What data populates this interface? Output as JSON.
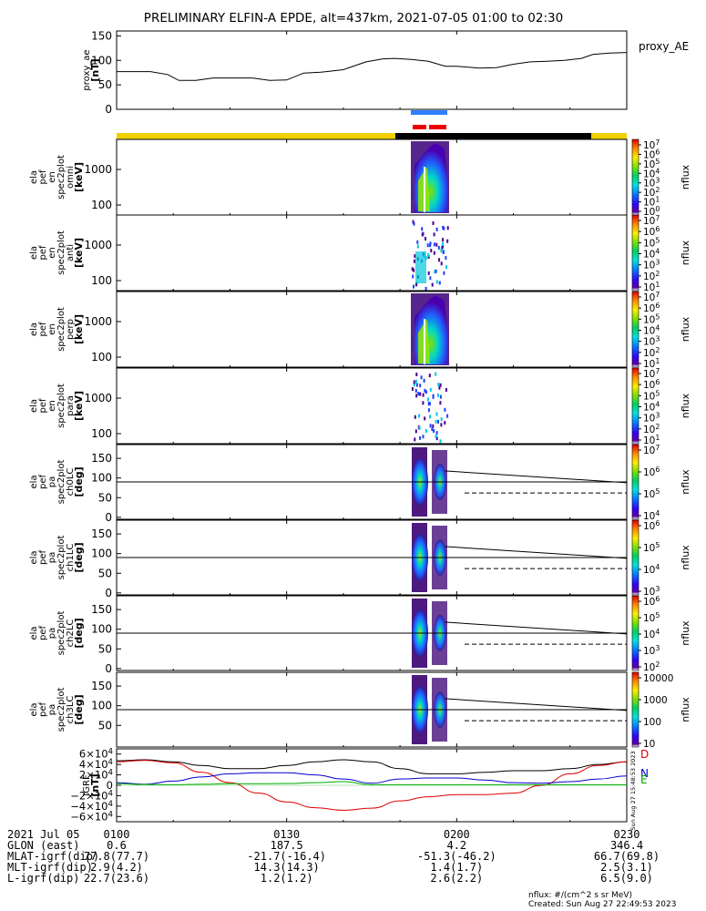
{
  "title": "PRELIMINARY ELFIN-A EPDE, alt=437km, 2021-07-05 01:00 to 02:30",
  "proxy_panel": {
    "ylabel": "proxy_ae",
    "unit": "[nT]",
    "legend": "proxy_AE",
    "yticks": [
      "150",
      "100",
      "50",
      "0"
    ],
    "chart_data": {
      "type": "line",
      "x_minutes": [
        0,
        3,
        6,
        9,
        11,
        14,
        17,
        20,
        24,
        27,
        30,
        33,
        36,
        37,
        40,
        44,
        47,
        49,
        52,
        55,
        58,
        60,
        64,
        67,
        70,
        73,
        76,
        79,
        82,
        84,
        87,
        90
      ],
      "values": [
        77,
        77,
        77,
        71,
        59,
        59,
        64,
        64,
        64,
        59,
        60,
        74,
        76,
        77,
        81,
        97,
        103,
        104,
        102,
        98,
        88,
        88,
        84,
        85,
        92,
        97,
        98,
        100,
        104,
        112,
        115,
        116
      ],
      "ylim": [
        0,
        160
      ]
    }
  },
  "phase_bars": {
    "blue": "#2f7fff",
    "red": "#ee0000",
    "yellow": "#f0d000",
    "black": "#000000"
  },
  "spec_panels": [
    {
      "labels": [
        "ela",
        "pef",
        "en",
        "spec2plot",
        "omni",
        "[keV]"
      ],
      "yticks": [
        "1000",
        "100"
      ],
      "cbar_ticks": [
        "10^7",
        "10^6",
        "10^5",
        "10^4",
        "10^3",
        "10^2",
        "10^1",
        "10^0"
      ],
      "cbar_label": "nflux"
    },
    {
      "labels": [
        "ela",
        "pef",
        "en",
        "spec2plot",
        "anti",
        "[keV]"
      ],
      "yticks": [
        "1000",
        "100"
      ],
      "cbar_ticks": [
        "10^7",
        "10^6",
        "10^5",
        "10^4",
        "10^3",
        "10^2",
        "10^1"
      ],
      "cbar_label": "nflux"
    },
    {
      "labels": [
        "ela",
        "pef",
        "en",
        "spec2plot",
        "perp",
        "[keV]"
      ],
      "yticks": [
        "1000",
        "100"
      ],
      "cbar_ticks": [
        "10^7",
        "10^6",
        "10^5",
        "10^4",
        "10^3",
        "10^2",
        "10^1"
      ],
      "cbar_label": "nflux"
    },
    {
      "labels": [
        "ela",
        "pef",
        "en",
        "spec2plot",
        "para",
        "[keV]"
      ],
      "yticks": [
        "1000",
        "100"
      ],
      "cbar_ticks": [
        "10^7",
        "10^6",
        "10^5",
        "10^4",
        "10^3",
        "10^2",
        "10^1"
      ],
      "cbar_label": "nflux"
    }
  ],
  "pa_panels": [
    {
      "labels": [
        "ela",
        "pef",
        "pa",
        "spec2plot",
        "ch0LC",
        "[deg]"
      ],
      "yticks": [
        "150",
        "100",
        "50",
        "0"
      ],
      "cbar_ticks": [
        "10^7",
        "10^6",
        "10^5",
        "10^4"
      ],
      "cbar_label": "nflux"
    },
    {
      "labels": [
        "ela",
        "pef",
        "pa",
        "spec2plot",
        "ch1LC",
        "[deg]"
      ],
      "yticks": [
        "150",
        "100",
        "50",
        "0"
      ],
      "cbar_ticks": [
        "10^6",
        "10^5",
        "10^4",
        "10^3"
      ],
      "cbar_label": "nflux"
    },
    {
      "labels": [
        "ela",
        "pef",
        "pa",
        "spec2plot",
        "ch2LC",
        "[deg]"
      ],
      "yticks": [
        "150",
        "100",
        "50",
        "0"
      ],
      "cbar_ticks": [
        "10^6",
        "10^5",
        "10^4",
        "10^3",
        "10^2"
      ],
      "cbar_label": "nflux"
    },
    {
      "labels": [
        "ela",
        "pef",
        "pa",
        "spec2plot",
        "ch3LC",
        "[deg]"
      ],
      "yticks": [
        "150",
        "100",
        "50"
      ],
      "cbar_ticks": [
        "10000",
        "1000",
        "100",
        "10"
      ],
      "cbar_label": "nflux"
    }
  ],
  "igrf_panel": {
    "ylabel": "IGRF",
    "unit": "[nT]",
    "yticks": [
      "6×10^4",
      "4×10^4",
      "2×10^4",
      "0",
      "−2×10^4",
      "−4×10^4",
      "−6×10^4"
    ],
    "legend": [
      "D",
      "N",
      "E"
    ],
    "legend_colors": [
      "#e00000",
      "#0000cc",
      "#00aa00"
    ],
    "side_stamp": "Sun Aug 27 15:48:53 2023",
    "chart_data": {
      "type": "line",
      "x_minutes": [
        0,
        5,
        10,
        15,
        20,
        25,
        30,
        35,
        40,
        45,
        50,
        55,
        60,
        65,
        70,
        75,
        80,
        85,
        90
      ],
      "series": [
        {
          "key": "total",
          "color": "#000000",
          "values": [
            47000,
            49000,
            45000,
            38000,
            32000,
            32000,
            38000,
            45000,
            49000,
            45000,
            32000,
            22000,
            22000,
            25000,
            28000,
            28000,
            32000,
            40000,
            45000
          ]
        },
        {
          "key": "D",
          "color": "#e00000",
          "values": [
            45000,
            48000,
            43000,
            25000,
            5000,
            -15000,
            -32000,
            -43000,
            -48000,
            -44000,
            -30000,
            -22000,
            -18000,
            -18000,
            -15000,
            0,
            22000,
            38000,
            45000
          ]
        },
        {
          "key": "N",
          "color": "#0000cc",
          "values": [
            5000,
            2000,
            8000,
            16000,
            22000,
            24000,
            24000,
            20000,
            12000,
            4000,
            12000,
            14000,
            14000,
            10000,
            5000,
            4000,
            7000,
            12000,
            18000
          ]
        },
        {
          "key": "E",
          "color": "#00aa00",
          "values": [
            3000,
            1500,
            1000,
            2000,
            3000,
            3000,
            3500,
            5000,
            7000,
            1000,
            1000,
            1000,
            1000,
            1000,
            1000,
            1000,
            1000,
            1000,
            1000
          ]
        }
      ],
      "ylim": [
        -70000,
        70000
      ]
    }
  },
  "time_axis": {
    "ticks": [
      "0100",
      "0130",
      "0200",
      "0230"
    ],
    "tick_minutes": [
      0,
      30,
      60,
      90
    ]
  },
  "bottom_rows": [
    {
      "label": "2021 Jul 05",
      "values": [
        "0100",
        "0130",
        "0200",
        "0230"
      ]
    },
    {
      "label": "GLON (east)",
      "values": [
        "0.6",
        "187.5",
        "4.2",
        "346.4"
      ]
    },
    {
      "label": "MLAT-igrf(dip)",
      "values": [
        "77.8(77.7)",
        "-21.7(-16.4)",
        "-51.3(-46.2)",
        "66.7(69.8)"
      ]
    },
    {
      "label": "MLT-igrf(dip)",
      "values": [
        "2.9(4.2)",
        "14.3(14.3)",
        "1.4(1.7)",
        "2.5(3.1)"
      ]
    },
    {
      "label": "L-igrf(dip)",
      "values": [
        "22.7(23.6)",
        "1.2(1.2)",
        "2.6(2.2)",
        "6.5(9.0)"
      ]
    }
  ],
  "footer": {
    "units_note": "nflux: #/(cm^2 s sr MeV)",
    "created": "Created: Sun Aug 27 22:49:53 2023"
  }
}
